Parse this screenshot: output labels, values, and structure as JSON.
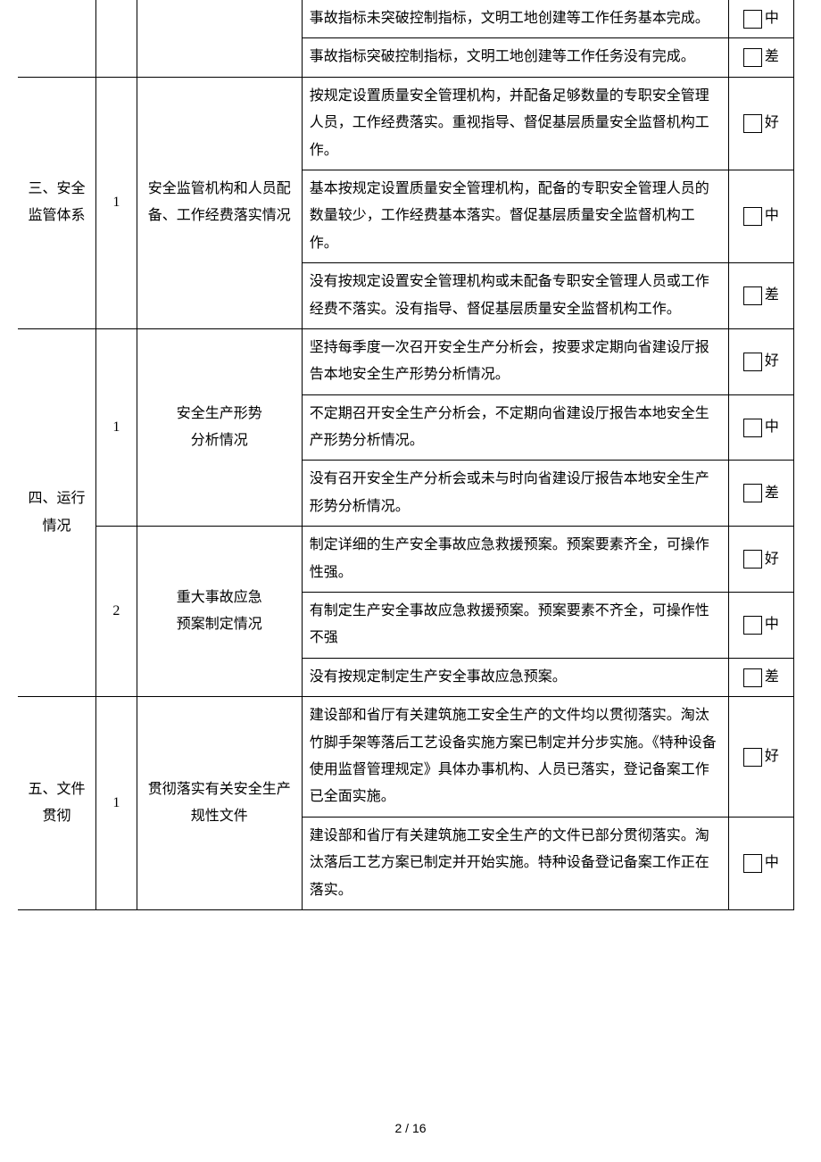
{
  "table": {
    "border_color": "#000000",
    "font_family": "SimSun",
    "font_size_pt": 12,
    "columns": {
      "col1_width": 86,
      "col2_width": 45,
      "col3_width": 182,
      "col4_width": 470,
      "col5_width": 72
    }
  },
  "ratings": {
    "good": "好",
    "mid": "中",
    "bad": "差"
  },
  "sections": [
    {
      "cat_label": "",
      "items": [
        {
          "num": "",
          "topic": "",
          "criteria": [
            {
              "desc": "事故指标未突破控制指标，文明工地创建等工作任务基本完成。",
              "rating": "mid"
            },
            {
              "desc": "事故指标突破控制指标，文明工地创建等工作任务没有完成。",
              "rating": "bad"
            }
          ]
        }
      ]
    },
    {
      "cat_label": "三、安全监管体系",
      "items": [
        {
          "num": "1",
          "topic": "安全监管机构和人员配备、工作经费落实情况",
          "criteria": [
            {
              "desc": "按规定设置质量安全管理机构，并配备足够数量的专职安全管理人员，工作经费落实。重视指导、督促基层质量安全监督机构工作。",
              "rating": "good"
            },
            {
              "desc": "基本按规定设置质量安全管理机构，配备的专职安全管理人员的数量较少，工作经费基本落实。督促基层质量安全监督机构工作。",
              "rating": "mid"
            },
            {
              "desc": "没有按规定设置安全管理机构或未配备专职安全管理人员或工作经费不落实。没有指导、督促基层质量安全监督机构工作。",
              "rating": "bad"
            }
          ]
        }
      ]
    },
    {
      "cat_label": "四、运行情况",
      "items": [
        {
          "num": "1",
          "topic": "安全生产形势\n分析情况",
          "criteria": [
            {
              "desc": "坚持每季度一次召开安全生产分析会，按要求定期向省建设厅报告本地安全生产形势分析情况。",
              "rating": "good"
            },
            {
              "desc": "不定期召开安全生产分析会，不定期向省建设厅报告本地安全生产形势分析情况。",
              "rating": "mid"
            },
            {
              "desc": "没有召开安全生产分析会或未与时向省建设厅报告本地安全生产形势分析情况。",
              "rating": "bad"
            }
          ]
        },
        {
          "num": "2",
          "topic": "重大事故应急\n预案制定情况",
          "criteria": [
            {
              "desc": "制定详细的生产安全事故应急救援预案。预案要素齐全，可操作性强。",
              "rating": "good"
            },
            {
              "desc": "有制定生产安全事故应急救援预案。预案要素不齐全，可操作性不强",
              "rating": "mid"
            },
            {
              "desc": "没有按规定制定生产安全事故应急预案。",
              "rating": "bad"
            }
          ]
        }
      ]
    },
    {
      "cat_label": "五、文件贯彻",
      "items": [
        {
          "num": "1",
          "topic": "贯彻落实有关安全生产规性文件",
          "criteria": [
            {
              "desc": "建设部和省厅有关建筑施工安全生产的文件均以贯彻落实。淘汰竹脚手架等落后工艺设备实施方案已制定并分步实施。《特种设备使用监督管理规定》具体办事机构、人员已落实，登记备案工作已全面实施。",
              "rating": "good"
            },
            {
              "desc": "建设部和省厅有关建筑施工安全生产的文件已部分贯彻落实。淘汰落后工艺方案已制定并开始实施。特种设备登记备案工作正在落实。",
              "rating": "mid"
            }
          ]
        }
      ]
    }
  ],
  "pageNumber": "2 / 16"
}
